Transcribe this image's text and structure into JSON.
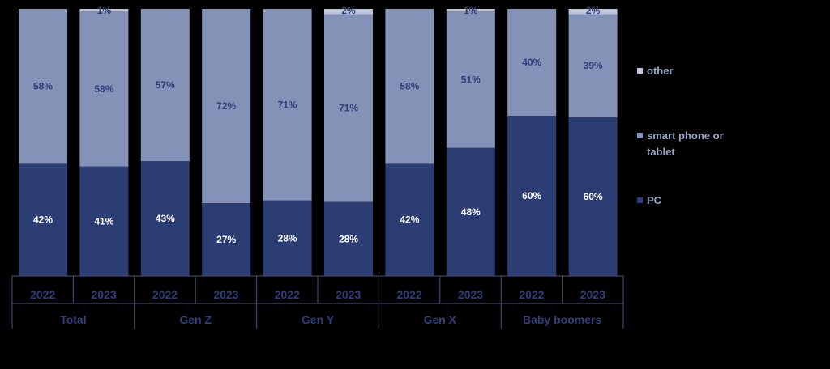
{
  "chart_data": {
    "type": "bar",
    "stacked": true,
    "normalized": true,
    "categories": [
      "2022",
      "2023",
      "2022",
      "2023",
      "2022",
      "2023",
      "2022",
      "2023",
      "2022",
      "2023"
    ],
    "groups": [
      "Total",
      "Gen Z",
      "Gen Y",
      "Gen X",
      "Baby boomers"
    ],
    "series": [
      {
        "name": "PC",
        "color": "#2b3d73",
        "labelColor": "#ffffff",
        "values": [
          42,
          41,
          43,
          27,
          28,
          28,
          42,
          48,
          60,
          60
        ],
        "labels": [
          "42%",
          "41%",
          "43%",
          "27%",
          "28%",
          "28%",
          "42%",
          "48%",
          "60%",
          "60%"
        ]
      },
      {
        "name": "smart phone or tablet",
        "color": "#8592b8",
        "labelColor": "#2f3f78",
        "values": [
          58,
          58,
          57,
          72,
          71,
          71,
          58,
          51,
          40,
          39
        ],
        "labels": [
          "58%",
          "58%",
          "57%",
          "72%",
          "71%",
          "71%",
          "58%",
          "51%",
          "40%",
          "39%"
        ]
      },
      {
        "name": "other",
        "color": "#bdc4da",
        "labelColor": "#2f3f78",
        "values": [
          0,
          1,
          0,
          0,
          0,
          2,
          0,
          1,
          0,
          2
        ],
        "labels": [
          "",
          "1%",
          "",
          "",
          "",
          "2%",
          "",
          "1%",
          "",
          "2%"
        ]
      }
    ],
    "ylim": [
      0,
      100
    ],
    "legend_position": "right"
  },
  "legend": {
    "other": "other",
    "smart": "smart phone or",
    "smart2": "tablet",
    "pc": "PC"
  }
}
